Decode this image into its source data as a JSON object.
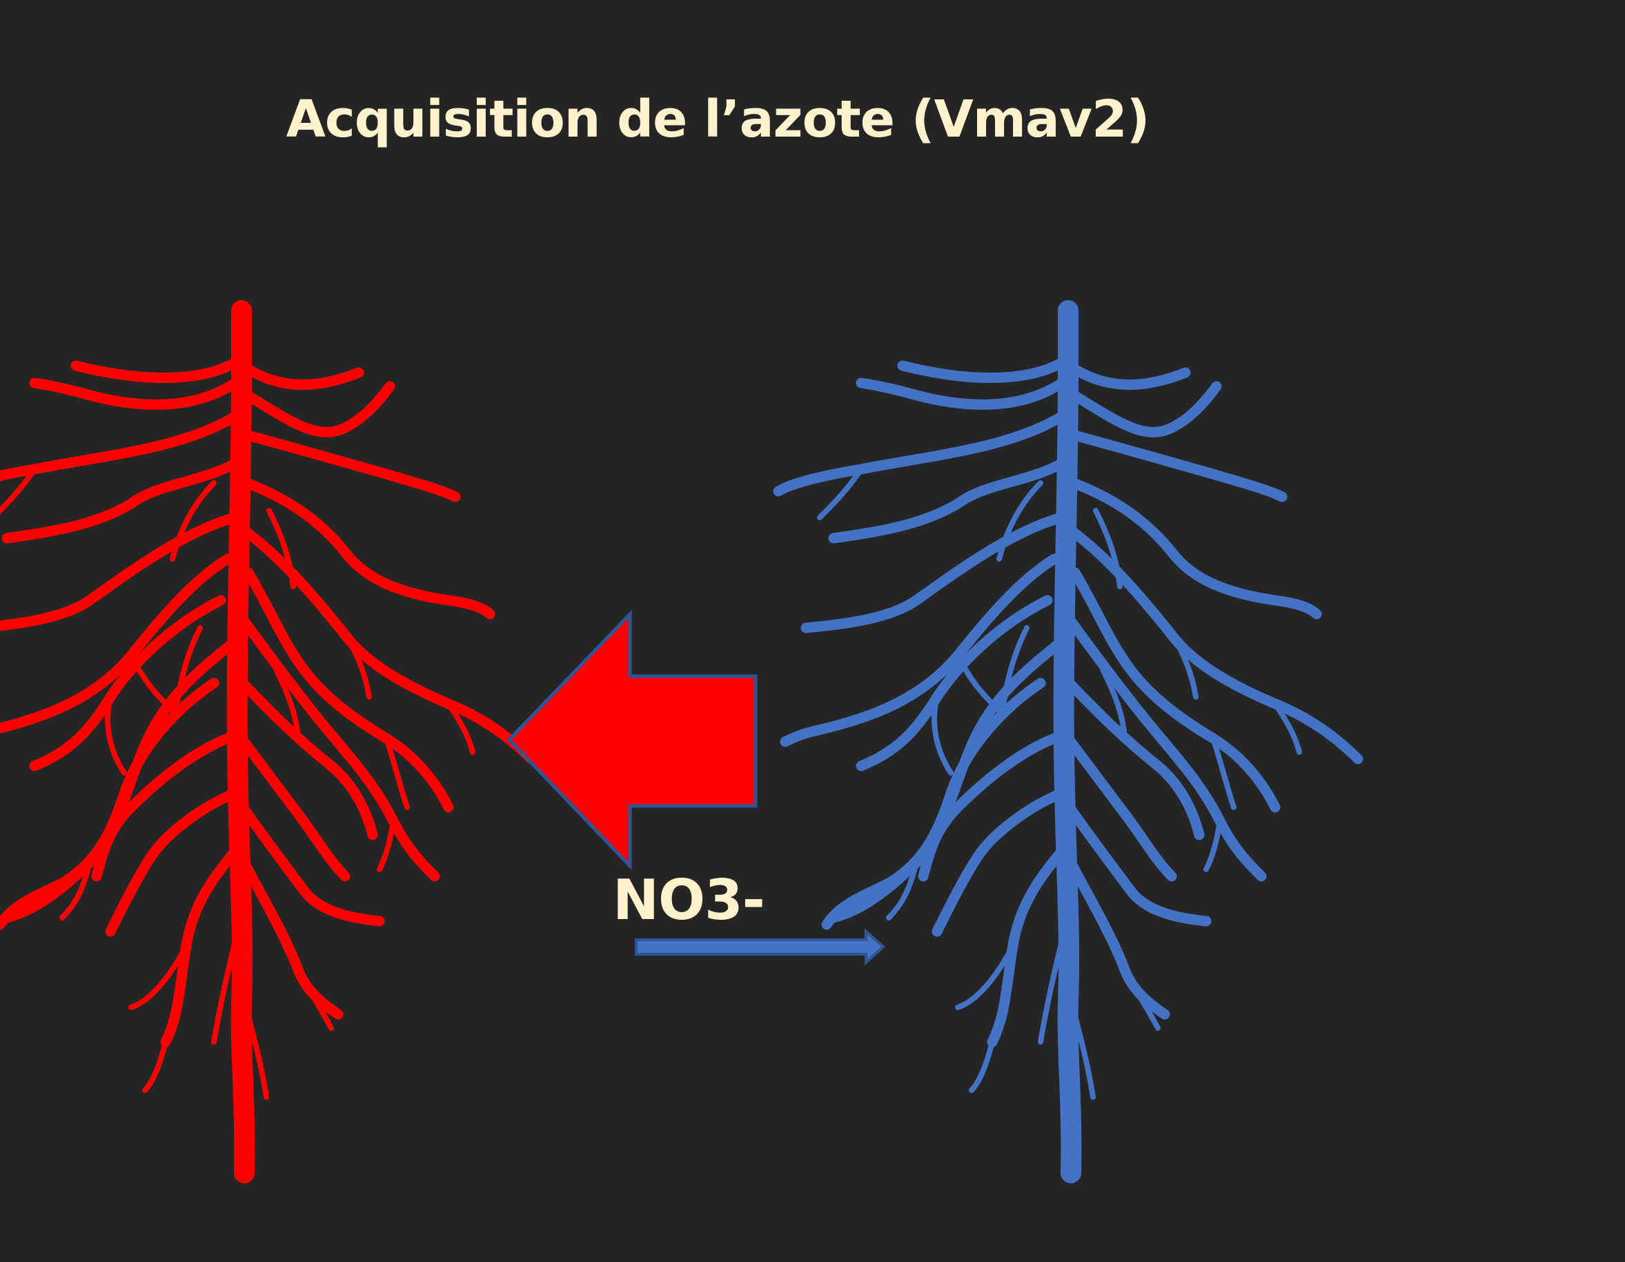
{
  "title": "Acquisition de l’azote (Vmav2)",
  "label": "NO3-",
  "colors": {
    "background": "#252525",
    "text": "#FFF2CC",
    "left_root": "#FF0000",
    "right_root": "#4472C4",
    "big_arrow_fill": "#FF0000",
    "arrow_outline": "#2F5597"
  },
  "icons": [
    "root-system-icon",
    "root-system-icon",
    "left-arrow-icon",
    "right-arrow-icon"
  ]
}
